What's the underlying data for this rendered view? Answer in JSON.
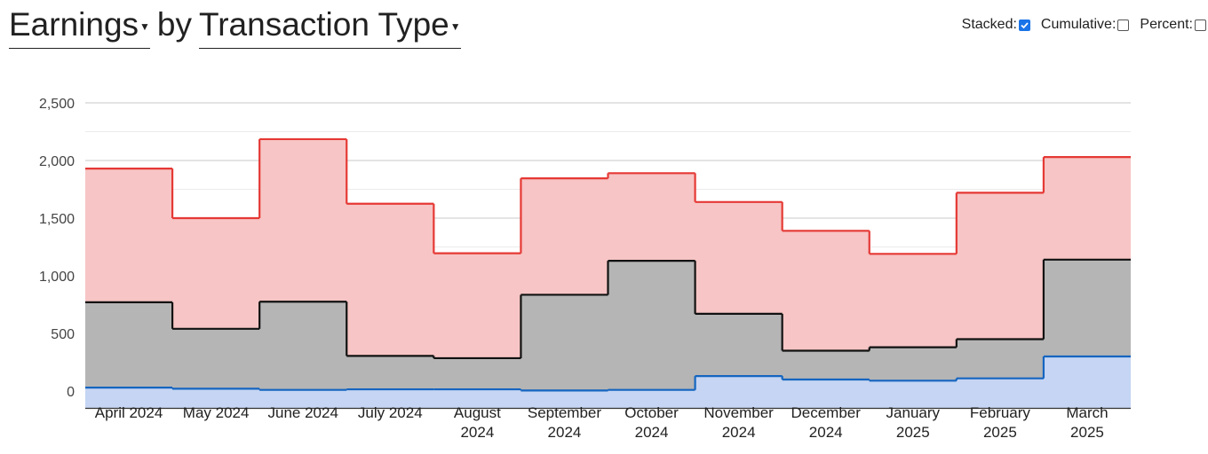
{
  "header": {
    "metric_label": "Earnings",
    "by_label": "by",
    "group_label": "Transaction Type"
  },
  "options": {
    "stacked_label": "Stacked:",
    "stacked_checked": true,
    "cumulative_label": "Cumulative:",
    "cumulative_checked": false,
    "percent_label": "Percent:",
    "percent_checked": false
  },
  "chart_data": {
    "type": "area",
    "stacked": true,
    "step": true,
    "categories": [
      "April 2024",
      "May 2024",
      "June 2024",
      "July 2024",
      "August 2024",
      "September 2024",
      "October 2024",
      "November 2024",
      "December 2024",
      "January 2025",
      "February 2025",
      "March 2025"
    ],
    "category_lines": [
      [
        "April 2024"
      ],
      [
        "May 2024"
      ],
      [
        "June 2024"
      ],
      [
        "July 2024"
      ],
      [
        "August",
        "2024"
      ],
      [
        "September",
        "2024"
      ],
      [
        "October",
        "2024"
      ],
      [
        "November",
        "2024"
      ],
      [
        "December",
        "2024"
      ],
      [
        "January",
        "2025"
      ],
      [
        "February",
        "2025"
      ],
      [
        "March",
        "2025"
      ]
    ],
    "series": [
      {
        "values": [
          30,
          20,
          10,
          15,
          15,
          5,
          10,
          130,
          100,
          90,
          110,
          300
        ],
        "color": "#1565c0",
        "fill": "#c5d5f3"
      },
      {
        "values": [
          740,
          520,
          765,
          290,
          270,
          830,
          1120,
          540,
          250,
          290,
          340,
          840
        ],
        "color": "#111111",
        "fill": "#b5b5b5"
      },
      {
        "values": [
          1160,
          960,
          1410,
          1320,
          910,
          1010,
          760,
          970,
          1040,
          810,
          1270,
          890
        ],
        "color": "#e53935",
        "fill": "#f7c5c5"
      }
    ],
    "yticks": [
      0,
      500,
      1000,
      1500,
      2000,
      2500
    ],
    "ytick_labels": [
      "0",
      "500",
      "1,000",
      "1,500",
      "2,000",
      "2,500"
    ],
    "ylim": [
      -150,
      2500
    ],
    "grid": true
  }
}
